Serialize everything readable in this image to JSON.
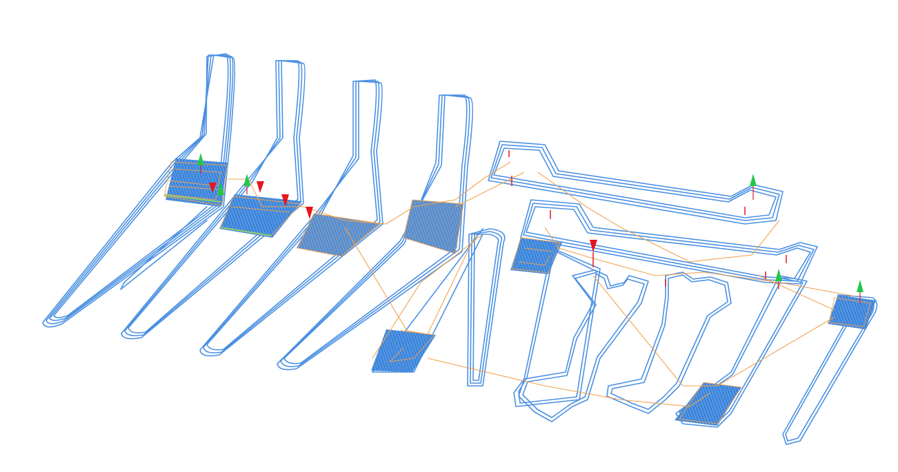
{
  "view": {
    "background": "#ffffff",
    "colors": {
      "wall": "#4a90e2",
      "wall_light": "#7fb2ee",
      "infill": "#3d85db",
      "travel": "#f2a24e",
      "seam_green": "#22c74a",
      "retract_red": "#e5161b",
      "support_edge": "#8fcf6a"
    },
    "markers": {
      "up": "green-cone-icon",
      "down": "red-cone-icon"
    }
  }
}
